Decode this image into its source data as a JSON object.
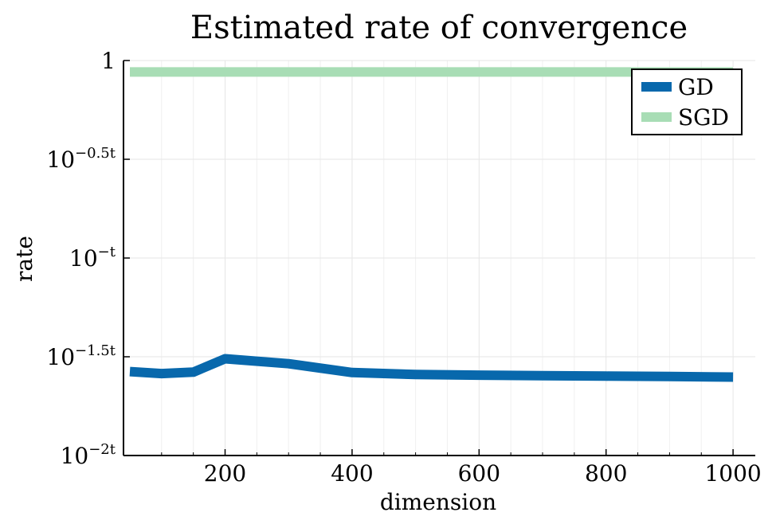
{
  "chart_data": {
    "type": "line",
    "title": "Estimated rate of convergence",
    "xlabel": "dimension",
    "ylabel": "rate",
    "xlim": [
      40,
      1035
    ],
    "ylim": [
      -2,
      0
    ],
    "grid": true,
    "legend_position": "top-right",
    "x_ticks": [
      200,
      400,
      600,
      800,
      1000
    ],
    "x_minor_ticks": [
      100,
      150,
      250,
      300,
      350,
      450,
      500,
      550,
      650,
      700,
      750,
      850,
      900,
      950
    ],
    "y_ticks": [
      {
        "value": 0,
        "base": "1",
        "exponent": ""
      },
      {
        "value": -0.5,
        "base": "10",
        "exponent": "−0.5t"
      },
      {
        "value": -1,
        "base": "10",
        "exponent": "−t"
      },
      {
        "value": -1.5,
        "base": "10",
        "exponent": "−1.5t"
      },
      {
        "value": -2,
        "base": "10",
        "exponent": "−2t"
      }
    ],
    "series": [
      {
        "name": "GD",
        "color": "#0868ac",
        "x": [
          50,
          100,
          150,
          200,
          300,
          400,
          500,
          600,
          700,
          800,
          900,
          1000
        ],
        "values": [
          -1.575,
          -1.585,
          -1.578,
          -1.51,
          -1.535,
          -1.58,
          -1.59,
          -1.593,
          -1.596,
          -1.598,
          -1.6,
          -1.603
        ]
      },
      {
        "name": "SGD",
        "color": "#a8ddb5",
        "x": [
          50,
          100,
          150,
          200,
          300,
          400,
          500,
          600,
          700,
          800,
          900,
          1000
        ],
        "values": [
          -0.058,
          -0.058,
          -0.058,
          -0.058,
          -0.058,
          -0.058,
          -0.058,
          -0.058,
          -0.058,
          -0.058,
          -0.058,
          -0.058
        ]
      }
    ]
  }
}
